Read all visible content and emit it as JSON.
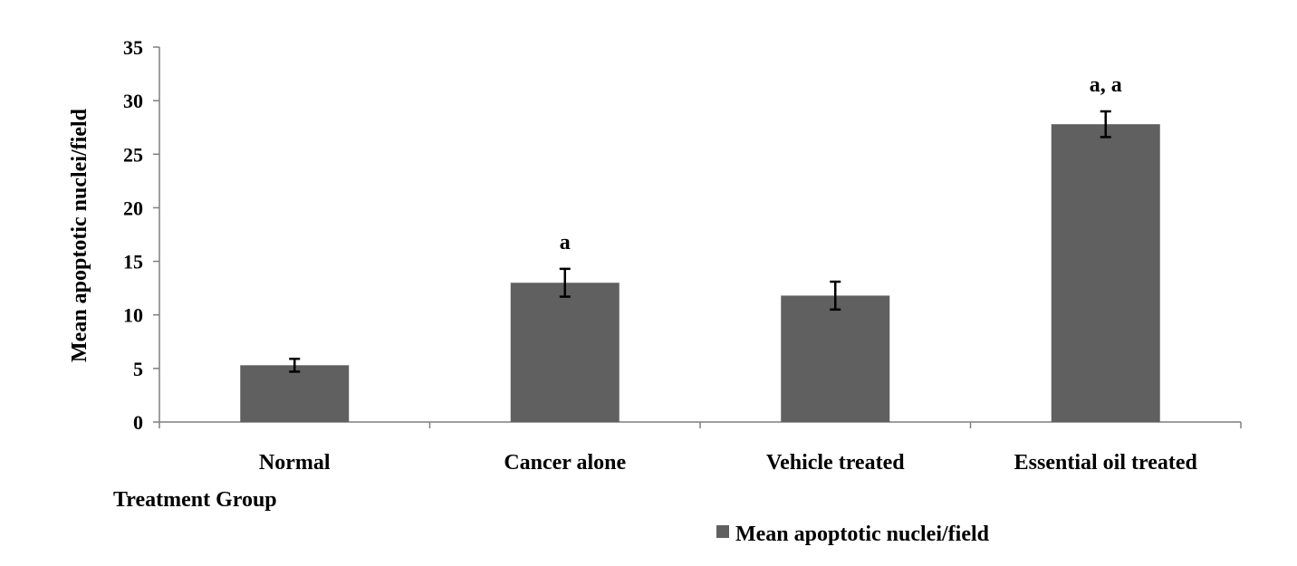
{
  "chart_data": {
    "type": "bar",
    "categories": [
      "Normal",
      "Cancer alone",
      "Vehicle treated",
      "Essential oil treated"
    ],
    "series": [
      {
        "name": "Mean apoptotic nuclei/field",
        "values": [
          5.3,
          13.0,
          11.8,
          27.8
        ],
        "errors": [
          0.6,
          1.3,
          1.3,
          1.2
        ],
        "color": "#606060"
      }
    ],
    "significance_labels": [
      "",
      "a",
      "",
      "a, a"
    ],
    "xlabel": "Treatment Group",
    "ylabel": "Mean apoptotic nuclei/field",
    "ylim": [
      0,
      35
    ],
    "yticks": [
      0,
      5,
      10,
      15,
      20,
      25,
      30,
      35
    ],
    "grid": false,
    "legend": "bottom-right"
  }
}
